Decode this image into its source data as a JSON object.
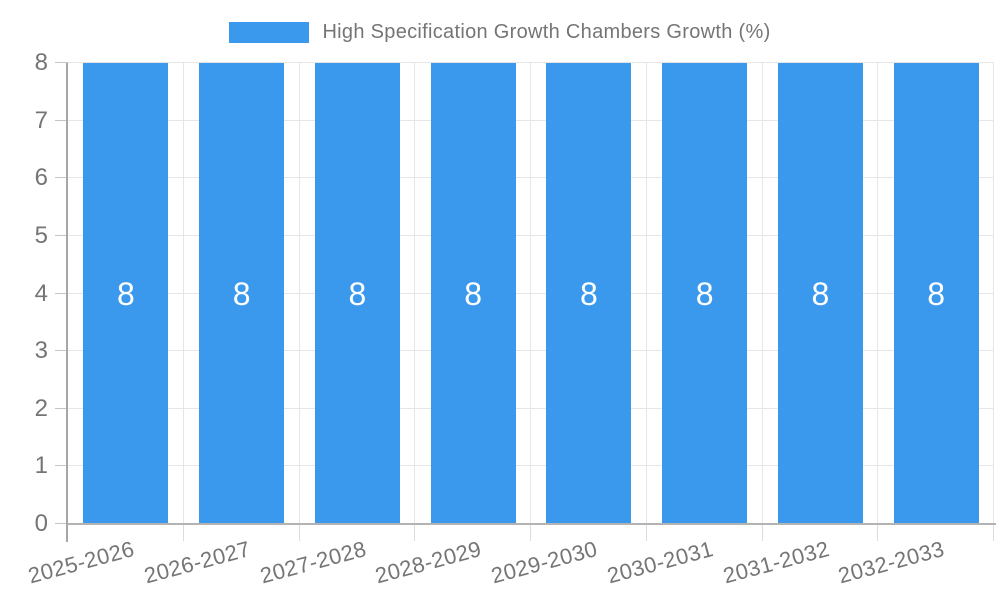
{
  "legend": {
    "label": "High Specification Growth Chambers Growth (%)"
  },
  "chart_data": {
    "type": "bar",
    "title": "High Specification Growth Chambers Growth (%)",
    "categories": [
      "2025-2026",
      "2026-2027",
      "2027-2028",
      "2028-2029",
      "2029-2030",
      "2030-2031",
      "2031-2032",
      "2032-2033"
    ],
    "series": [
      {
        "name": "High Specification Growth Chambers Growth (%)",
        "values": [
          8,
          8,
          8,
          8,
          8,
          8,
          8,
          8
        ]
      }
    ],
    "bar_value_labels": [
      "8",
      "8",
      "8",
      "8",
      "8",
      "8",
      "8",
      "8"
    ],
    "xlabel": "",
    "ylabel": "",
    "ylim": [
      0,
      8
    ],
    "yticks": [
      0,
      1,
      2,
      3,
      4,
      5,
      6,
      7,
      8
    ],
    "grid": true,
    "legend_position": "top-center",
    "colors": {
      "bar": "#3b99ed",
      "bar_label": "#ffffff",
      "axis_text": "#757575",
      "gridline": "#e6e6e6",
      "axis_line": "#a6a6a6",
      "baseline": "#b3b3b3",
      "minor_tick": "#dcdcdc",
      "y_tick": "#c4c4c4",
      "background": "#ffffff"
    }
  }
}
